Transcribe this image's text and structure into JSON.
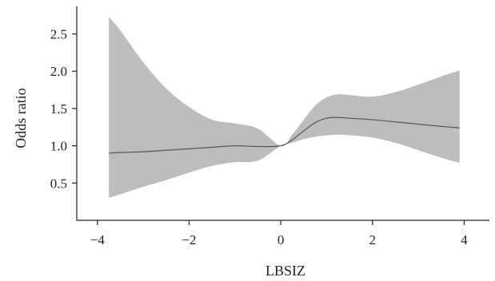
{
  "chart_data": {
    "type": "line",
    "title": "",
    "xlabel": "LBSIZ",
    "ylabel": "Odds ratio",
    "xlim": [
      -4.45,
      4.55
    ],
    "ylim": [
      0.0,
      2.87
    ],
    "xticks": [
      -4,
      -2,
      0,
      2,
      4
    ],
    "xtick_labels": [
      "−4",
      "−2",
      "0",
      "2",
      "4"
    ],
    "yticks": [
      0.5,
      1.0,
      1.5,
      2.0,
      2.5
    ],
    "ytick_labels": [
      "0.5",
      "1.0",
      "1.5",
      "2.0",
      "2.5"
    ],
    "grid": false,
    "legend": "none",
    "colors": {
      "band": "#bdbdbd",
      "line": "#555555",
      "axis": "#222222"
    },
    "series": [
      {
        "x": [
          -3.75,
          -3.5,
          -3.0,
          -2.5,
          -2.0,
          -1.5,
          -1.0,
          -0.5,
          0.0,
          0.25,
          0.5,
          0.75,
          1.0,
          1.25,
          1.5,
          2.0,
          2.5,
          3.0,
          3.5,
          3.9
        ],
        "y": [
          0.9,
          0.91,
          0.92,
          0.94,
          0.96,
          0.98,
          1.0,
          0.99,
          1.0,
          1.08,
          1.2,
          1.31,
          1.37,
          1.38,
          1.37,
          1.35,
          1.32,
          1.29,
          1.26,
          1.24
        ],
        "lower": [
          0.3,
          0.35,
          0.45,
          0.54,
          0.64,
          0.73,
          0.78,
          0.8,
          1.0,
          1.04,
          1.09,
          1.12,
          1.14,
          1.15,
          1.14,
          1.11,
          1.04,
          0.94,
          0.84,
          0.77
        ],
        "upper": [
          2.73,
          2.55,
          2.12,
          1.77,
          1.52,
          1.35,
          1.3,
          1.23,
          1.0,
          1.15,
          1.35,
          1.54,
          1.65,
          1.69,
          1.68,
          1.66,
          1.72,
          1.82,
          1.93,
          2.01
        ]
      }
    ]
  }
}
